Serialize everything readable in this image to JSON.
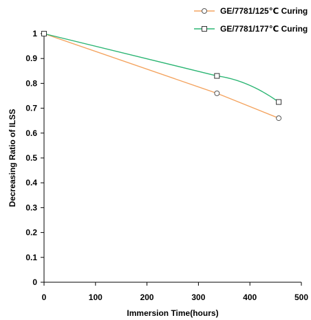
{
  "chart_data": {
    "type": "line",
    "title": "",
    "xlabel": "Immersion Time(hours)",
    "ylabel": "Decreasing Ratio of  ILSS",
    "xlim": [
      0,
      500
    ],
    "ylim": [
      0,
      1
    ],
    "x_ticks": [
      0,
      100,
      200,
      300,
      400,
      500
    ],
    "y_ticks": [
      0,
      0.1,
      0.2,
      0.3,
      0.4,
      0.5,
      0.6,
      0.7,
      0.8,
      0.9,
      1
    ],
    "x_tick_labels": [
      "0",
      "100",
      "200",
      "300",
      "400",
      "500"
    ],
    "y_tick_labels": [
      "0",
      "0.1",
      "0.2",
      "0.3",
      "0.4",
      "0.5",
      "0.6",
      "0.7",
      "0.8",
      "0.9",
      "1"
    ],
    "grid": false,
    "legend_position": "top-right",
    "series": [
      {
        "name": "GE/7781/125℃  Curing",
        "color": "#f4a460",
        "marker": "circle",
        "x": [
          0,
          336,
          456
        ],
        "y": [
          1,
          0.76,
          0.66
        ]
      },
      {
        "name": "GE/7781/177℃  Curing",
        "color": "#2bb573",
        "marker": "square",
        "x": [
          0,
          336,
          456
        ],
        "y": [
          1,
          0.83,
          0.725
        ]
      }
    ]
  }
}
